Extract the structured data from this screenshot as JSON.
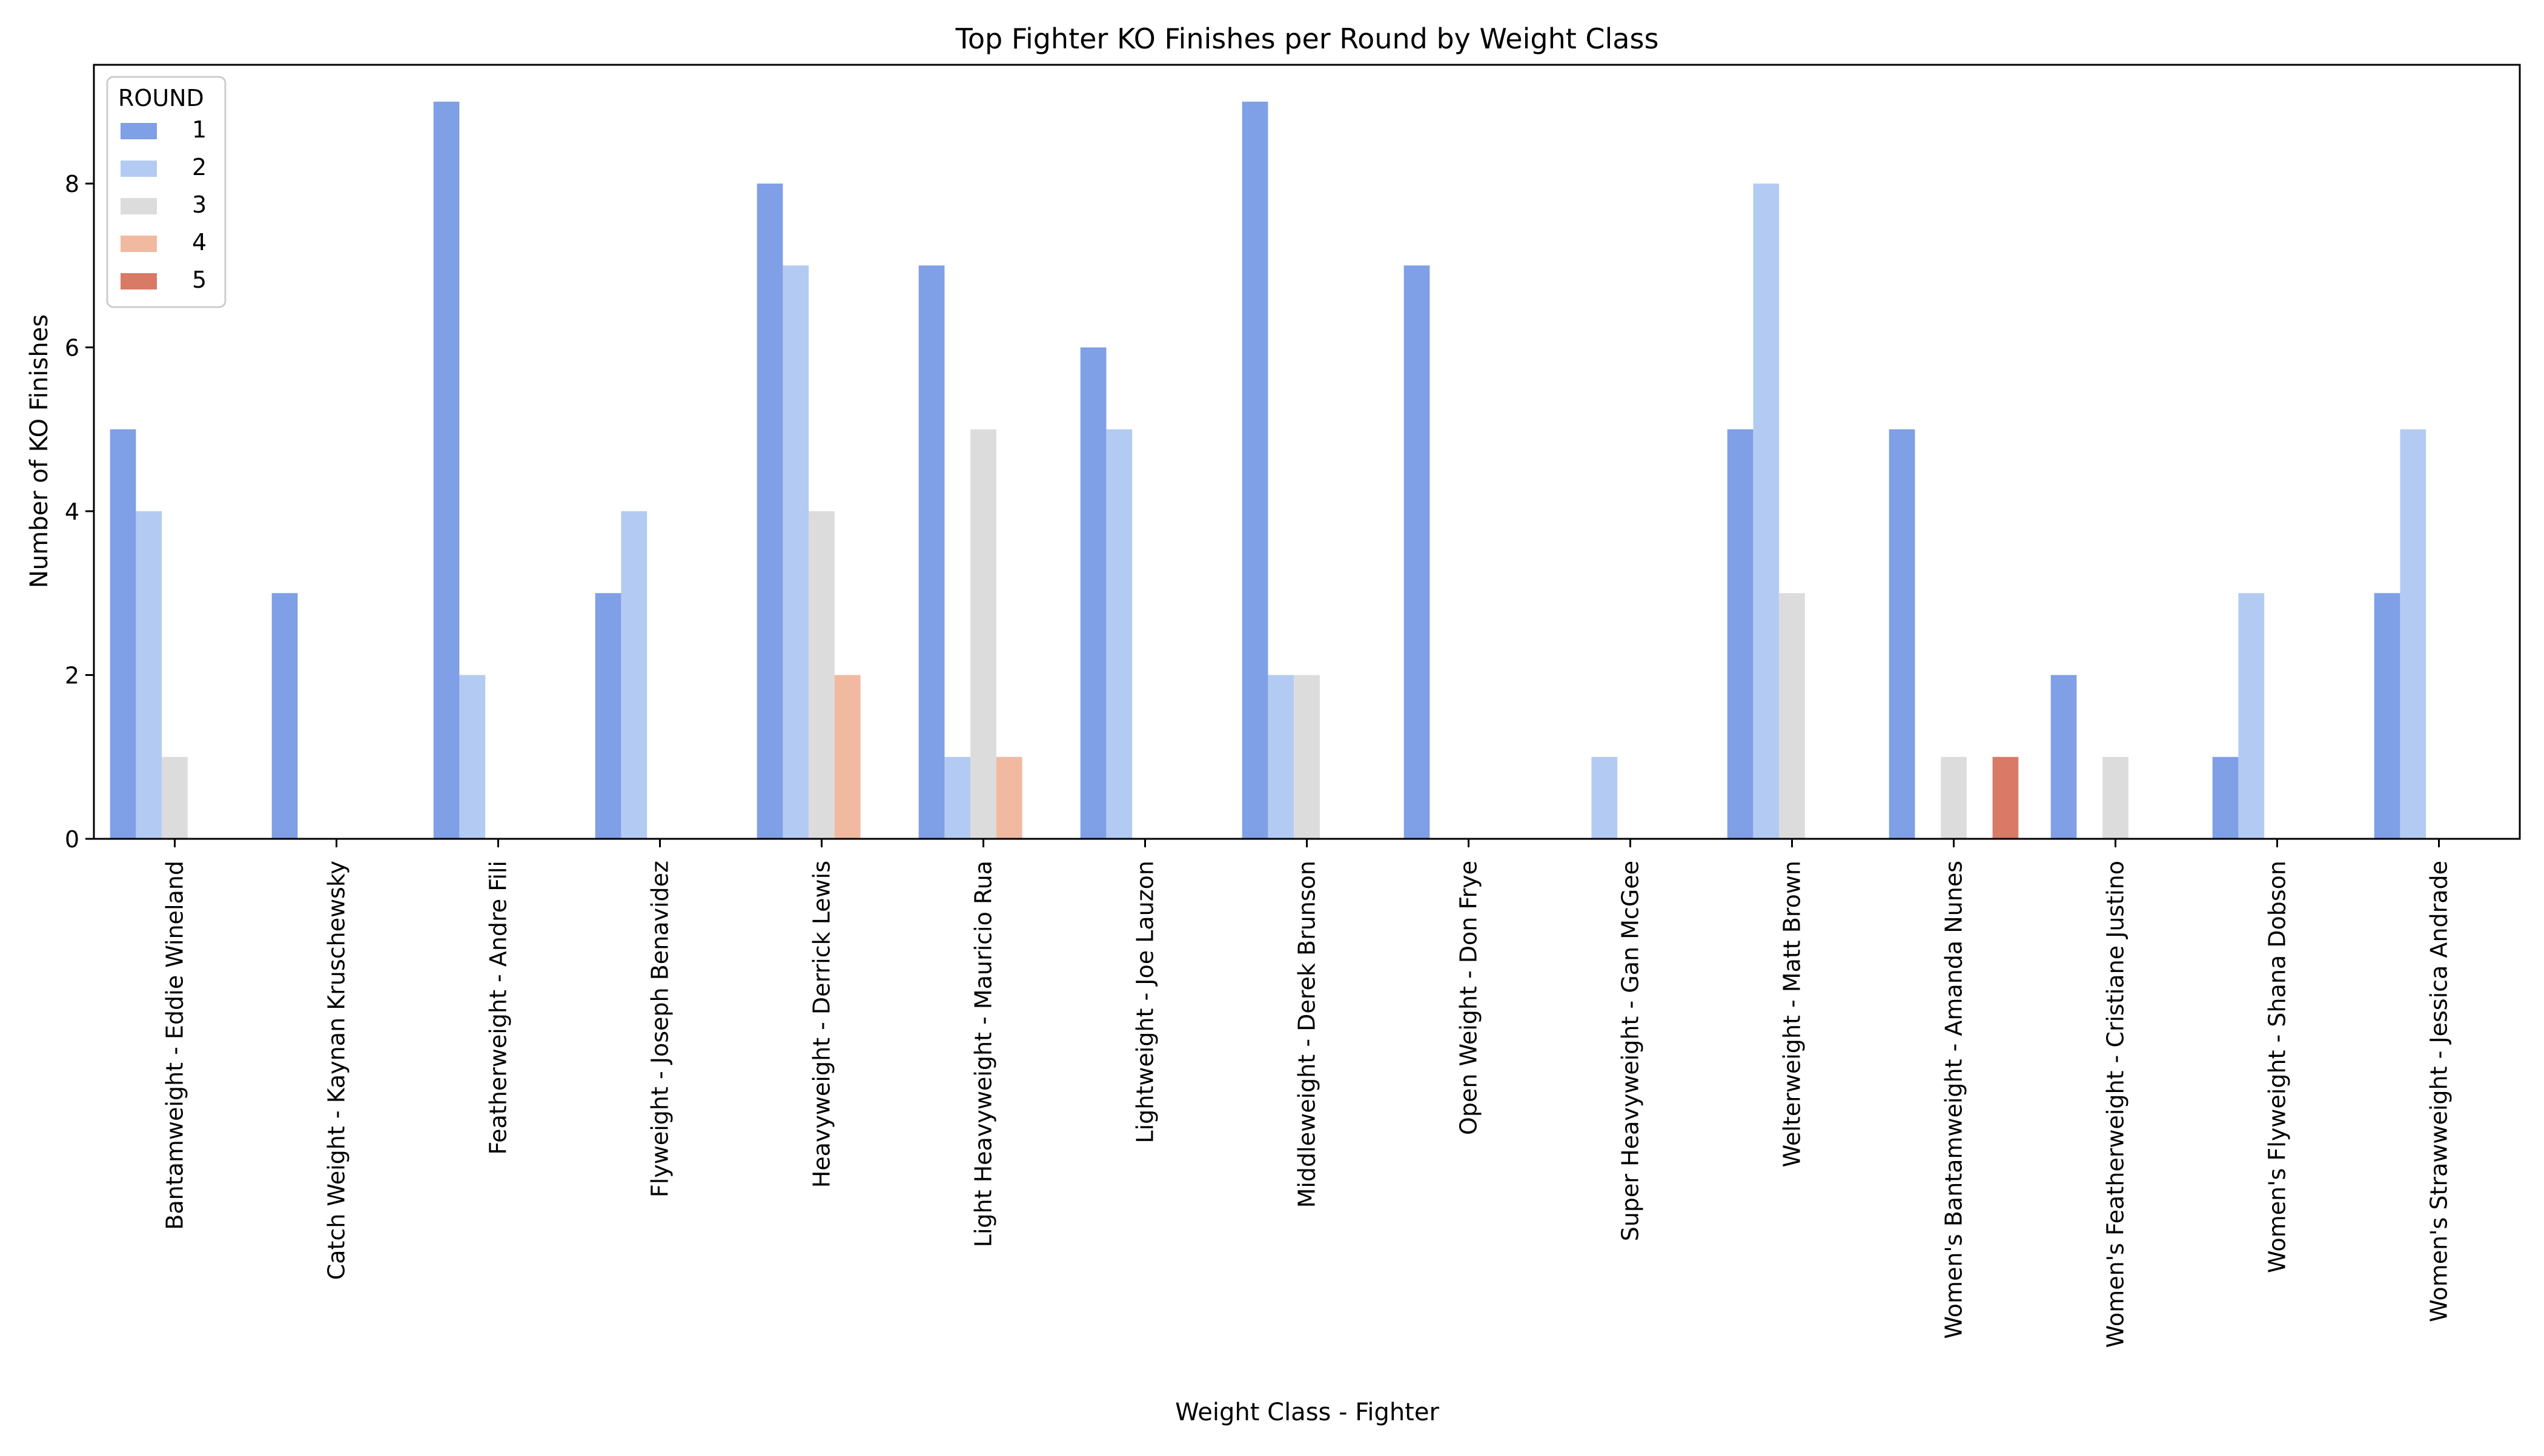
{
  "chart_data": {
    "type": "bar",
    "title": "Top Fighter KO Finishes per Round by Weight Class",
    "xlabel": "Weight Class - Fighter",
    "ylabel": "Number of KO Finishes",
    "ylim": [
      0,
      9.45
    ],
    "yticks": [
      0,
      2,
      4,
      6,
      8
    ],
    "grid": false,
    "legend": {
      "title": "ROUND",
      "placement": "top-left"
    },
    "categories": [
      "Bantamweight - Eddie Wineland",
      "Catch Weight - Kaynan Kruschewsky",
      "Featherweight - Andre Fili",
      "Flyweight - Joseph Benavidez",
      "Heavyweight - Derrick Lewis",
      "Light Heavyweight - Mauricio Rua",
      "Lightweight - Joe Lauzon",
      "Middleweight - Derek Brunson",
      "Open Weight - Don Frye",
      "Super Heavyweight - Gan McGee",
      "Welterweight - Matt Brown",
      "Women's Bantamweight - Amanda Nunes",
      "Women's Featherweight - Cristiane Justino",
      "Women's Flyweight - Shana Dobson",
      "Women's Strawweight - Jessica Andrade"
    ],
    "series": [
      {
        "name": "1",
        "color": "#7f9fe6",
        "values": [
          5,
          3,
          9,
          3,
          8,
          7,
          6,
          9,
          7,
          0,
          5,
          5,
          2,
          1,
          3
        ]
      },
      {
        "name": "2",
        "color": "#b3cbf3",
        "values": [
          4,
          0,
          2,
          4,
          7,
          1,
          5,
          2,
          0,
          1,
          8,
          0,
          0,
          3,
          5
        ]
      },
      {
        "name": "3",
        "color": "#dddcdc",
        "values": [
          1,
          0,
          0,
          0,
          4,
          5,
          0,
          2,
          0,
          0,
          3,
          1,
          1,
          0,
          0
        ]
      },
      {
        "name": "4",
        "color": "#f0b9a0",
        "values": [
          0,
          0,
          0,
          0,
          2,
          1,
          0,
          0,
          0,
          0,
          0,
          0,
          0,
          0,
          0
        ]
      },
      {
        "name": "5",
        "color": "#d87a66",
        "values": [
          0,
          0,
          0,
          0,
          0,
          0,
          0,
          0,
          0,
          0,
          0,
          1,
          0,
          0,
          0
        ]
      }
    ]
  }
}
